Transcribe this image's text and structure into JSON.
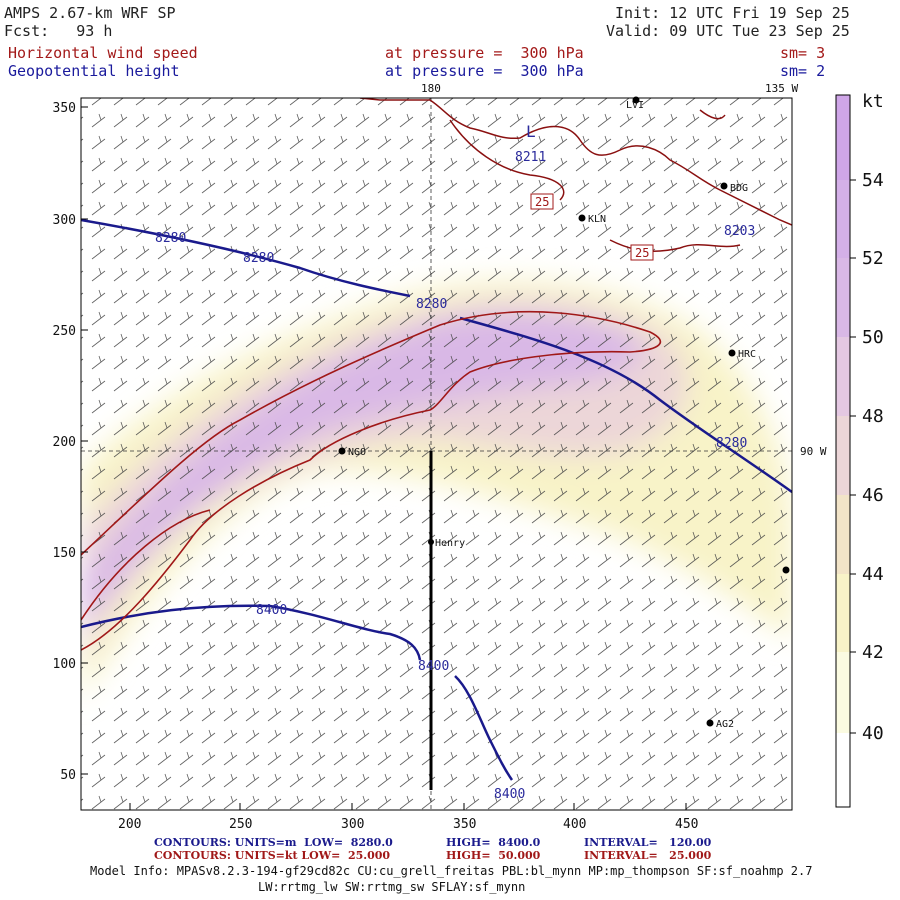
{
  "header": {
    "model": "AMPS 2.67-km WRF SP",
    "fcst": "Fcst:   93 h",
    "init": "Init: 12 UTC Fri 19 Sep 25",
    "valid": "Valid: 09 UTC Tue 23 Sep 25",
    "field1": "Horizontal wind speed",
    "field1_level": "at pressure =  300 hPa",
    "field1_sm": "sm= 3",
    "field2": "Geopotential height",
    "field2_level": "at pressure =  300 hPa",
    "field2_sm": "sm= 2"
  },
  "map": {
    "x_ticks": [
      "200",
      "250",
      "300",
      "350",
      "400",
      "450"
    ],
    "y_ticks": [
      "350",
      "300",
      "250",
      "200",
      "150",
      "100",
      "50"
    ],
    "lon_top_180": "180",
    "lon_top_135w": "135 W",
    "lon_right_90w": "90 W",
    "stations": [
      {
        "name": "LVI"
      },
      {
        "name": "BDG"
      },
      {
        "name": "KLN"
      },
      {
        "name": "HRC"
      },
      {
        "name": "NGO"
      },
      {
        "name": "Henry"
      },
      {
        "name": "AG2"
      },
      {
        "name": ""
      }
    ],
    "height_labels": [
      "8280",
      "8280",
      "8280",
      "8280",
      "8400",
      "8400",
      "8400"
    ],
    "speed_labels": [
      "25",
      "25"
    ],
    "low_marker": "L",
    "low_value": "8211",
    "low_value2": "8203"
  },
  "colorbar": {
    "unit": "kt",
    "labels": [
      "54",
      "52",
      "50",
      "48",
      "46",
      "44",
      "42",
      "40"
    ],
    "colors": {
      "c40": "#ffffff",
      "c42": "#fbfbe1",
      "c44": "#f8f3c8",
      "c46": "#f2e4c8",
      "c48": "#ecd6d8",
      "c50": "#e4c8e2",
      "c52": "#d9b8e6",
      "c54": "#cfa6e8"
    }
  },
  "footer": {
    "line1_left": "CONTOURS: UNITS=m  LOW=  8280.0",
    "line1_high": "HIGH=  8400.0",
    "line1_int": "INTERVAL=   120.00",
    "line2_left": "CONTOURS: UNITS=kt LOW=  25.000",
    "line2_high": "HIGH=  50.000",
    "line2_int": "INTERVAL=   25.000",
    "model_info": "Model Info: MPASv8.2.3-194-gf29cd82c CU:cu_grell_freitas PBL:bl_mynn MP:mp_thompson SF:sf_noahmp 2.7",
    "model_info2": "LW:rrtmg_lw SW:rrtmg_sw SFLAY:sf_mynn"
  }
}
